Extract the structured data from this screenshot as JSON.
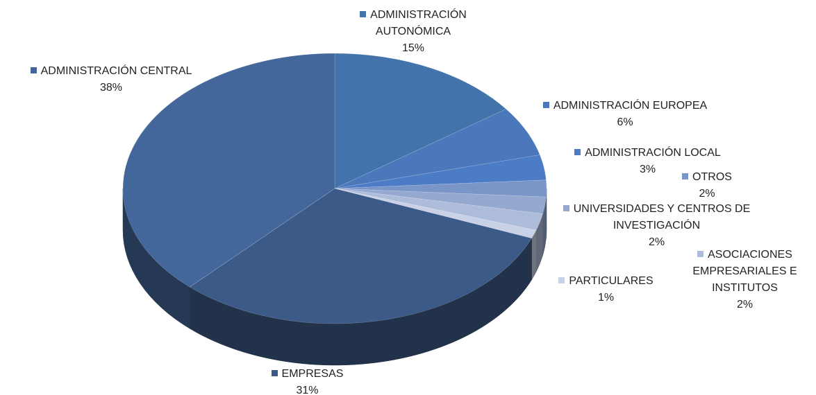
{
  "chart_data": {
    "type": "pie",
    "categories": [
      "ADMINISTRACIÓN AUTONÓMICA",
      "ADMINISTRACIÓN EUROPEA",
      "ADMINISTRACIÓN LOCAL",
      "OTROS",
      "UNIVERSIDADES Y CENTROS DE INVESTIGACIÓN",
      "ASOCIACIONES EMPRESARIALES E INSTITUTOS",
      "PARTICULARES",
      "EMPRESAS",
      "ADMINISTRACIÓN CENTRAL"
    ],
    "values": [
      15,
      6,
      3,
      2,
      2,
      2,
      1,
      31,
      38
    ],
    "value_labels": [
      "15%",
      "6%",
      "3%",
      "2%",
      "2%",
      "2%",
      "1%",
      "31%",
      "38%"
    ],
    "colors": [
      "#4273ab",
      "#4a78ba",
      "#4d7cc6",
      "#7a95c8",
      "#95a9d0",
      "#aebcdb",
      "#c8d1e6",
      "#3c5a87",
      "#43679b"
    ]
  }
}
